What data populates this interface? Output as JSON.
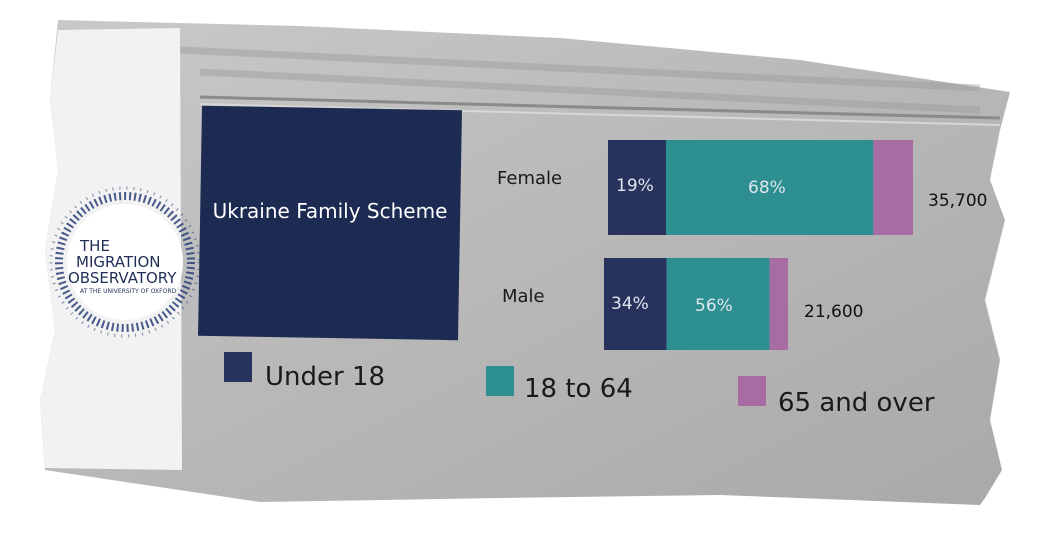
{
  "logo": {
    "line1": "THE",
    "line2": "MIGRATION",
    "line3": "OBSERVATORY",
    "line4": "AT THE UNIVERSITY OF OXFORD"
  },
  "panel_label": "Ukraine Family Scheme",
  "chart_data": {
    "type": "bar",
    "orientation": "horizontal",
    "stacked": true,
    "normalized": true,
    "categories": [
      "Female",
      "Male"
    ],
    "series": [
      {
        "name": "Under 18",
        "values": [
          19,
          34
        ],
        "labels": [
          "19%",
          "34%"
        ],
        "color": "#27335c"
      },
      {
        "name": "18 to 64",
        "values": [
          68,
          56
        ],
        "labels": [
          "68%",
          "56%"
        ],
        "color": "#2e8f91"
      },
      {
        "name": "65 and over",
        "values": [
          13,
          10
        ],
        "labels": [
          "",
          ""
        ],
        "color": "#a76ca1"
      }
    ],
    "totals": [
      "35,700",
      "21,600"
    ],
    "legend_position": "bottom"
  }
}
